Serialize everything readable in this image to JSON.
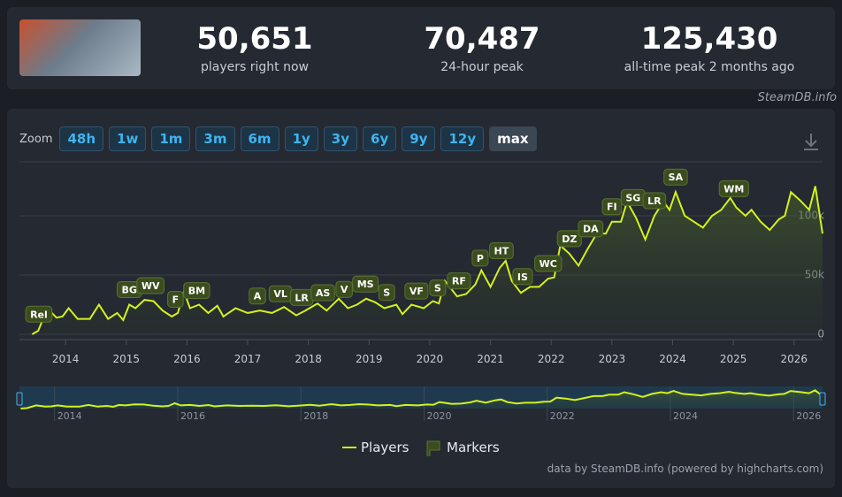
{
  "stats": [
    {
      "value": "50,651",
      "label": "players right now"
    },
    {
      "value": "70,487",
      "label": "24-hour peak"
    },
    {
      "value": "125,430",
      "label": "all-time peak 2 months ago"
    }
  ],
  "source": "SteamDB.info",
  "zoom": {
    "label": "Zoom",
    "buttons": [
      "48h",
      "1w",
      "1m",
      "3m",
      "6m",
      "1y",
      "3y",
      "6y",
      "9y",
      "12y",
      "max"
    ]
  },
  "chart_data": {
    "type": "line",
    "xlim": [
      2013.43,
      2026.47
    ],
    "xticks": [
      2014,
      2015,
      2016,
      2017,
      2018,
      2019,
      2020,
      2021,
      2022,
      2023,
      2024,
      2025,
      2026
    ],
    "ylim": [
      0,
      145000
    ],
    "yticks": [
      0,
      {
        "value": 50000,
        "label": "50k"
      },
      {
        "value": 100000,
        "label": "100k"
      }
    ],
    "grid": true,
    "series": [
      {
        "name": "Players",
        "color": "#d2f21c",
        "x": [
          2013.45,
          2013.55,
          2013.7,
          2013.85,
          2013.95,
          2014.05,
          2014.2,
          2014.4,
          2014.55,
          2014.7,
          2014.85,
          2014.95,
          2015.05,
          2015.15,
          2015.3,
          2015.45,
          2015.6,
          2015.75,
          2015.85,
          2015.95,
          2016.05,
          2016.2,
          2016.35,
          2016.5,
          2016.6,
          2016.8,
          2017.0,
          2017.2,
          2017.4,
          2017.6,
          2017.8,
          2017.95,
          2018.15,
          2018.3,
          2018.5,
          2018.65,
          2018.8,
          2018.95,
          2019.1,
          2019.25,
          2019.45,
          2019.55,
          2019.7,
          2019.9,
          2020.05,
          2020.15,
          2020.25,
          2020.45,
          2020.6,
          2020.75,
          2020.85,
          2021.0,
          2021.15,
          2021.25,
          2021.35,
          2021.5,
          2021.65,
          2021.8,
          2021.95,
          2022.05,
          2022.15,
          2022.3,
          2022.45,
          2022.6,
          2022.75,
          2022.9,
          2023.0,
          2023.15,
          2023.25,
          2023.4,
          2023.55,
          2023.7,
          2023.85,
          2023.95,
          2024.05,
          2024.2,
          2024.35,
          2024.5,
          2024.65,
          2024.8,
          2024.95,
          2025.05,
          2025.2,
          2025.3,
          2025.45,
          2025.6,
          2025.75,
          2025.85,
          2025.95,
          2026.1,
          2026.25,
          2026.35,
          2026.47
        ],
        "values": [
          0,
          3000,
          22000,
          14000,
          15000,
          22000,
          13000,
          13000,
          25000,
          13000,
          18000,
          12000,
          25000,
          22000,
          29000,
          28000,
          20000,
          15000,
          18000,
          36000,
          22000,
          25000,
          18000,
          24000,
          15000,
          22000,
          18000,
          20000,
          18000,
          23000,
          16000,
          20000,
          26000,
          20000,
          30000,
          22000,
          25000,
          30000,
          27000,
          22000,
          25000,
          17000,
          25000,
          22000,
          28000,
          26000,
          45000,
          32000,
          34000,
          42000,
          54000,
          40000,
          56000,
          62000,
          45000,
          35000,
          40000,
          40000,
          47000,
          48000,
          75000,
          68000,
          58000,
          72000,
          85000,
          85000,
          95000,
          95000,
          112000,
          98000,
          80000,
          100000,
          112000,
          105000,
          120000,
          100000,
          95000,
          90000,
          100000,
          105000,
          115000,
          107000,
          100000,
          105000,
          95000,
          88000,
          97000,
          100000,
          120000,
          113000,
          105000,
          125000,
          85000
        ]
      }
    ],
    "markers": {
      "name": "Markers",
      "color": "#3b4d1e",
      "labels": [
        "Rel",
        "BG",
        "WV",
        "F",
        "BM",
        "A",
        "VL",
        "LR",
        "AS",
        "V",
        "MS",
        "S",
        "VF",
        "S",
        "RF",
        "P",
        "HT",
        "IS",
        "WC",
        "DZ",
        "DA",
        "FI",
        "SG",
        "LR",
        "SA",
        "WM"
      ],
      "x": [
        2013.56,
        2015.05,
        2015.4,
        2015.81,
        2016.16,
        2017.16,
        2017.54,
        2017.89,
        2018.24,
        2018.59,
        2018.94,
        2019.29,
        2019.78,
        2020.13,
        2020.48,
        2020.83,
        2021.18,
        2021.53,
        2021.95,
        2022.3,
        2022.65,
        2023.0,
        2023.35,
        2023.7,
        2024.05,
        2025.01
      ]
    },
    "navigator_xticks": [
      2014,
      2016,
      2018,
      2020,
      2022,
      2024,
      2026
    ]
  },
  "credits": "data by SteamDB.info (powered by highcharts.com)"
}
